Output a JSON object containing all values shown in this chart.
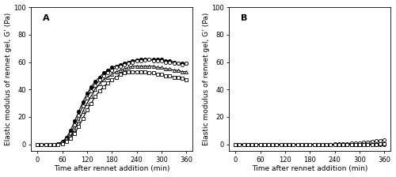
{
  "title_A": "A",
  "title_B": "B",
  "xlabel": "Time after rennet addition (min)",
  "ylabel": "Elastic modulus of rennet gel, G’ (Pa)",
  "xlim": [
    -15,
    375
  ],
  "ylim": [
    -5,
    100
  ],
  "xticks": [
    0,
    60,
    120,
    180,
    240,
    300,
    360
  ],
  "yticks": [
    0,
    20,
    40,
    60,
    80,
    100
  ],
  "time_A": [
    0,
    10,
    20,
    30,
    40,
    50,
    60,
    70,
    80,
    90,
    100,
    110,
    120,
    130,
    140,
    150,
    160,
    170,
    180,
    190,
    200,
    210,
    220,
    230,
    240,
    250,
    260,
    270,
    280,
    290,
    300,
    310,
    320,
    330,
    340,
    350,
    360
  ],
  "series_A": {
    "filled_circle": [
      0,
      0,
      0,
      0,
      0,
      0.5,
      2,
      5,
      10,
      17,
      24,
      31,
      37,
      42,
      46,
      49,
      52,
      54,
      56,
      57,
      58,
      59,
      60,
      61,
      61.5,
      62,
      62,
      62,
      62,
      62,
      62,
      61,
      61,
      60,
      59,
      59,
      59
    ],
    "open_circle": [
      0,
      0,
      0,
      0,
      0,
      0.3,
      1.5,
      4,
      8,
      14,
      21,
      28,
      34,
      39,
      43,
      47,
      50,
      52,
      54,
      56,
      57,
      58,
      59,
      60,
      61,
      61,
      61.5,
      62,
      61,
      61,
      61,
      60,
      60,
      59,
      59,
      58,
      59
    ],
    "open_triangle": [
      0,
      0,
      0,
      0,
      0,
      0.2,
      1,
      3,
      6,
      11,
      17,
      24,
      30,
      35,
      40,
      44,
      47,
      49,
      51,
      53,
      54,
      55,
      56,
      57,
      57,
      57,
      57,
      57,
      57,
      56,
      56,
      55,
      55,
      54,
      54,
      53,
      53
    ],
    "open_square": [
      0,
      0,
      0,
      0,
      0,
      0.1,
      0.5,
      2,
      4.5,
      8,
      13,
      19,
      25,
      30,
      35,
      39,
      42,
      45,
      47,
      49,
      51,
      52,
      53,
      53,
      53,
      53,
      53,
      52,
      52,
      51,
      51,
      50,
      50,
      49,
      49,
      48,
      47
    ]
  },
  "time_B": [
    0,
    10,
    20,
    30,
    40,
    50,
    60,
    70,
    80,
    90,
    100,
    110,
    120,
    130,
    140,
    150,
    160,
    170,
    180,
    190,
    200,
    210,
    220,
    230,
    240,
    250,
    260,
    270,
    280,
    290,
    300,
    310,
    320,
    330,
    340,
    350,
    360
  ],
  "series_B": {
    "filled_circle": [
      0,
      0,
      0,
      0,
      0,
      0,
      0,
      0,
      0,
      0,
      0,
      0,
      0,
      0,
      0,
      0,
      0,
      0,
      0,
      0,
      0,
      0,
      0,
      0,
      0,
      0,
      0,
      0,
      0,
      0,
      0,
      0,
      0,
      0,
      0,
      0,
      0
    ],
    "open_circle": [
      0,
      0,
      0,
      0,
      0,
      0,
      0,
      0,
      0,
      0,
      0,
      0,
      0,
      0,
      0,
      0,
      0,
      0,
      0,
      0,
      0,
      0,
      0,
      0,
      0.2,
      0.3,
      0.5,
      0.6,
      0.8,
      1.0,
      1.2,
      1.5,
      1.8,
      2.2,
      2.6,
      3.0,
      3.5
    ],
    "open_triangle": [
      0,
      0,
      0,
      0,
      0,
      0,
      0,
      0,
      0,
      0,
      0,
      0,
      0,
      0,
      0,
      0,
      0,
      0,
      0,
      0,
      0,
      0,
      0,
      0,
      0,
      0,
      0,
      0,
      0,
      0,
      0.1,
      0.2,
      0.3,
      0.4,
      0.5,
      0.6,
      0.7
    ],
    "open_square": [
      0,
      0,
      0,
      0,
      0,
      0,
      0,
      0,
      0,
      0,
      0,
      0,
      0,
      0,
      0,
      0,
      0,
      0,
      0,
      0,
      0,
      0,
      0,
      0,
      0,
      0,
      0,
      0,
      0,
      0,
      0,
      0,
      0,
      0,
      0.1,
      0.2,
      0.3
    ]
  },
  "marker_size": 3.0,
  "linewidth": 0.8,
  "bg_color": "#ffffff",
  "font_size_label": 6.5,
  "font_size_tick": 6,
  "font_size_panel": 8
}
